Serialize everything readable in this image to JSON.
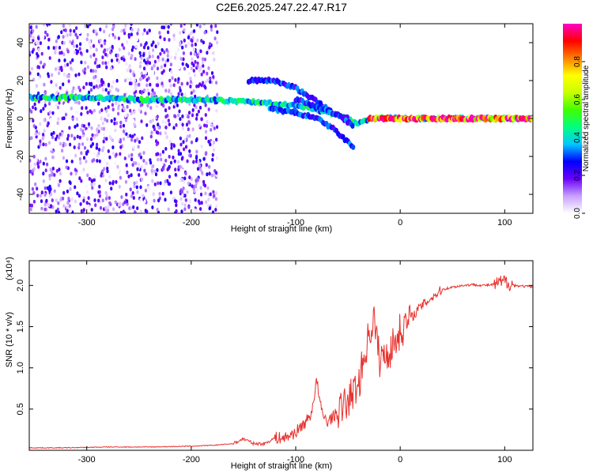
{
  "figure_title": "C2E6.2025.247.22.47.R17",
  "chart_data": [
    {
      "type": "heatmap",
      "id": "spectrogram",
      "xlabel": "Height of straight line (km)",
      "ylabel": "Frequency (Hz)",
      "xlim": [
        -355,
        127
      ],
      "ylim": [
        -50,
        50
      ],
      "xticks": [
        -300,
        -200,
        -100,
        0,
        100
      ],
      "yticks": [
        -40,
        -20,
        0,
        20,
        40
      ],
      "xtick_labels": [
        "-300",
        "-200",
        "-100",
        "0",
        "100"
      ],
      "ytick_labels": [
        "-40",
        "-20",
        "0",
        "20",
        "40"
      ],
      "traces": [
        {
          "name": "main-signal",
          "points": [
            [
              -355,
              11
            ],
            [
              -300,
              11
            ],
            [
              -250,
              10
            ],
            [
              -200,
              10
            ],
            [
              -150,
              9
            ],
            [
              -120,
              8
            ],
            [
              -90,
              6
            ],
            [
              -60,
              2
            ],
            [
              -40,
              -3
            ],
            [
              -30,
              0
            ],
            [
              -10,
              0
            ],
            [
              0,
              0
            ],
            [
              127,
              0
            ]
          ],
          "amplitude": 0.45
        },
        {
          "name": "upper-branch",
          "points": [
            [
              -145,
              20
            ],
            [
              -120,
              20
            ],
            [
              -100,
              16
            ],
            [
              -80,
              9
            ],
            [
              -65,
              3
            ],
            [
              -50,
              0
            ]
          ],
          "amplitude": 0.3
        },
        {
          "name": "lower-branch-1",
          "points": [
            [
              -125,
              5
            ],
            [
              -100,
              3
            ],
            [
              -80,
              0
            ],
            [
              -65,
              -5
            ],
            [
              -55,
              -10
            ],
            [
              -45,
              -15
            ]
          ],
          "amplitude": 0.3
        },
        {
          "name": "lower-branch-2",
          "points": [
            [
              -100,
              10
            ],
            [
              -80,
              6
            ],
            [
              -60,
              2
            ],
            [
              -45,
              -4
            ]
          ],
          "amplitude": 0.3
        },
        {
          "name": "carrier-peak",
          "points": [
            [
              -30,
              0
            ],
            [
              -25,
              0
            ],
            [
              -10,
              0
            ],
            [
              0,
              0
            ],
            [
              127,
              0
            ]
          ],
          "amplitude": 0.95
        }
      ],
      "colorbar": {
        "label": "Normalized spectral amplitude",
        "range": [
          0,
          1
        ],
        "ticks": [
          0.0,
          0.2,
          0.4,
          0.6,
          0.8
        ],
        "tick_labels": [
          "0.0",
          "0.2",
          "0.4",
          "0.6",
          "0.8"
        ],
        "colors": [
          "#ffffff",
          "#c8a0ff",
          "#6a00ff",
          "#0000ff",
          "#00c8ff",
          "#00ff80",
          "#40ff00",
          "#c8ff00",
          "#ffff00",
          "#ff8000",
          "#ff0000",
          "#ff00c8"
        ]
      }
    },
    {
      "type": "line",
      "id": "snr",
      "xlabel": "Height of straight line (km)",
      "ylabel": "SNR (10 * v/v)",
      "scale_label": "(x10⁴)",
      "xlim": [
        -355,
        127
      ],
      "ylim": [
        0,
        2.3
      ],
      "xticks": [
        -300,
        -200,
        -100,
        0,
        100
      ],
      "yticks": [
        0.5,
        1.0,
        1.5,
        2.0
      ],
      "xtick_labels": [
        "-300",
        "-200",
        "-100",
        "0",
        "100"
      ],
      "ytick_labels": [
        "0.5",
        "1.0",
        "1.5",
        "2.0"
      ],
      "line_color": "#e8302c",
      "series": [
        {
          "name": "SNR",
          "x": [
            -355,
            -320,
            -280,
            -240,
            -200,
            -180,
            -160,
            -150,
            -140,
            -130,
            -120,
            -110,
            -100,
            -90,
            -85,
            -80,
            -75,
            -70,
            -60,
            -50,
            -40,
            -30,
            -25,
            -20,
            -10,
            0,
            10,
            20,
            30,
            40,
            50,
            60,
            70,
            80,
            90,
            100,
            110,
            127
          ],
          "y": [
            0.03,
            0.03,
            0.04,
            0.04,
            0.05,
            0.06,
            0.08,
            0.14,
            0.08,
            0.08,
            0.15,
            0.15,
            0.22,
            0.35,
            0.45,
            0.85,
            0.45,
            0.35,
            0.45,
            0.6,
            0.8,
            1.4,
            1.6,
            1.1,
            1.2,
            1.45,
            1.6,
            1.75,
            1.85,
            1.95,
            1.98,
            2.0,
            2.01,
            2.0,
            2.01,
            2.05,
            2.0,
            1.98
          ]
        }
      ]
    }
  ]
}
